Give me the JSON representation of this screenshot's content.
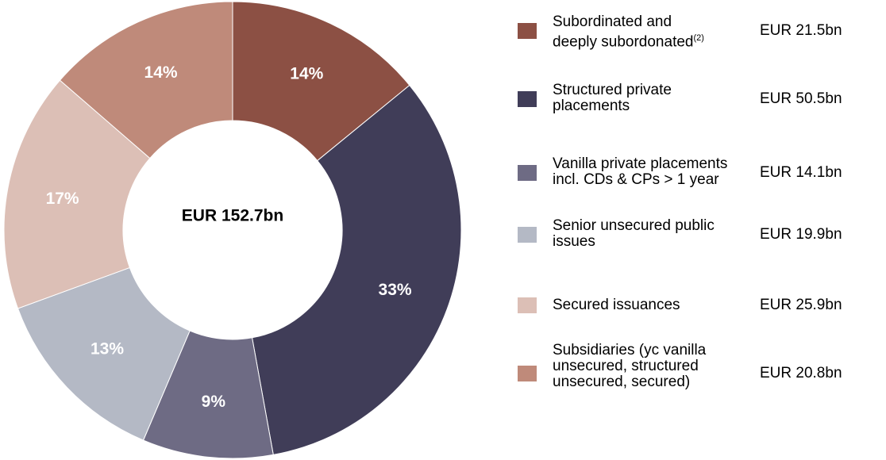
{
  "chart_data": {
    "type": "pie",
    "variant": "donut",
    "center_label": "EUR  152.7bn",
    "categories": [
      "Subordinated and deeply subordonated(2)",
      "Structured private placements",
      "Vanilla private placements incl. CDs & CPs > 1 year",
      "Senior unsecured public issues",
      "Secured issuances",
      "Subsidiaries (yc vanilla unsecured, structured unsecured, secured)"
    ],
    "values_pct": [
      14,
      33,
      9,
      13,
      17,
      14
    ],
    "pct_labels": [
      "14%",
      "33%",
      "9%",
      "13%",
      "17%",
      "14%"
    ],
    "amounts": [
      "EUR 21.5bn",
      "EUR 50.5bn",
      "EUR 14.1bn",
      "EUR 19.9bn",
      "EUR 25.9bn",
      "EUR 20.8bn"
    ],
    "amounts_bn": [
      21.5,
      50.5,
      14.1,
      19.9,
      25.9,
      20.8
    ],
    "colors": [
      "#8c5044",
      "#403d58",
      "#6e6b84",
      "#b4b9c5",
      "#dcbfb6",
      "#bf8a7a"
    ],
    "legend_placement": "right"
  },
  "legend": [
    {
      "lines": [
        "Subordinated and",
        "deeply subordonated"
      ],
      "sup": "(2)",
      "value": "EUR 21.5bn"
    },
    {
      "lines": [
        "Structured private",
        "placements"
      ],
      "value": "EUR 50.5bn"
    },
    {
      "lines": [
        "Vanilla private placements",
        "incl. CDs & CPs > 1 year"
      ],
      "value": "EUR 14.1bn"
    },
    {
      "lines": [
        "Senior unsecured public",
        "issues"
      ],
      "value": "EUR 19.9bn"
    },
    {
      "lines": [
        "Secured issuances"
      ],
      "value": "EUR 25.9bn"
    },
    {
      "lines": [
        "Subsidiaries (yc vanilla",
        "unsecured, structured",
        "unsecured, secured)"
      ],
      "value": "EUR 20.8bn"
    }
  ]
}
